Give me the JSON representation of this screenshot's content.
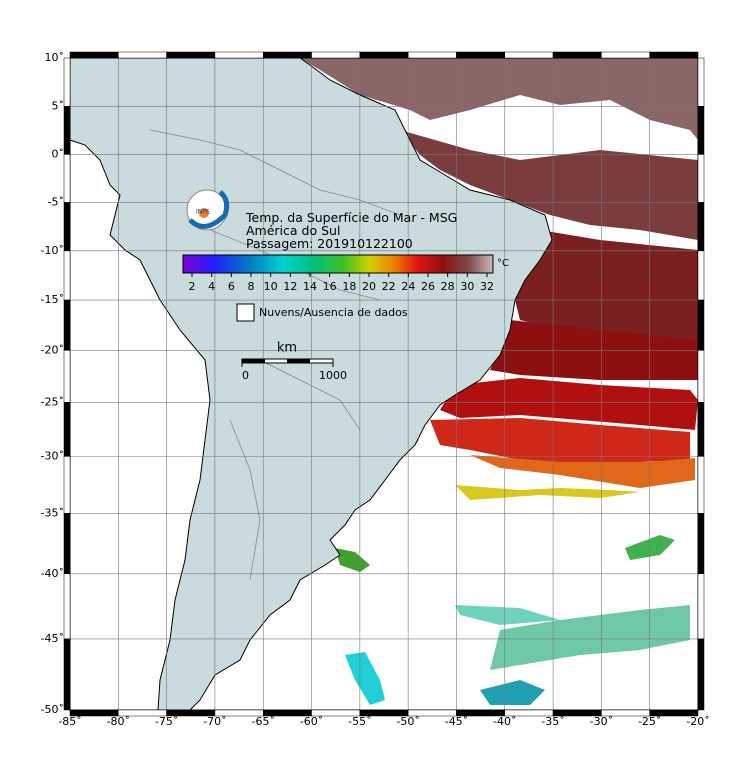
{
  "header": {
    "logo": "INPE",
    "title": "Temp. da Superfície do Mar - MSG",
    "region": "América do Sul",
    "pass": "Passagem: 201910122100"
  },
  "colorbar": {
    "ticks": [
      2,
      4,
      6,
      8,
      10,
      12,
      14,
      16,
      18,
      20,
      22,
      24,
      26,
      28,
      30,
      32
    ],
    "unit": "°C"
  },
  "legend": {
    "label": "Nuvens/Ausencia de dados"
  },
  "scale": {
    "unit": "km",
    "ticks": [
      0,
      1000
    ]
  },
  "axes": {
    "lat_ticks": [
      {
        "value": 10,
        "label": "10˚"
      },
      {
        "value": 5,
        "label": "5˚"
      },
      {
        "value": 0,
        "label": "0˚"
      },
      {
        "value": -5,
        "label": "-5˚"
      },
      {
        "value": -10,
        "label": "-10˚"
      },
      {
        "value": -15,
        "label": "-15˚"
      },
      {
        "value": -20,
        "label": "-20˚"
      },
      {
        "value": -25,
        "label": "-25˚"
      },
      {
        "value": -30,
        "label": "-30˚"
      },
      {
        "value": -35,
        "label": "-35˚"
      },
      {
        "value": -40,
        "label": "-40˚"
      },
      {
        "value": -45,
        "label": "-45˚"
      },
      {
        "value": -50,
        "label": "-50˚"
      }
    ],
    "lon_ticks": [
      {
        "value": -85,
        "label": "-85˚"
      },
      {
        "value": -80,
        "label": "-80˚"
      },
      {
        "value": -75,
        "label": "-75˚"
      },
      {
        "value": -70,
        "label": "-70˚"
      },
      {
        "value": -65,
        "label": "-65˚"
      },
      {
        "value": -60,
        "label": "-60˚"
      },
      {
        "value": -55,
        "label": "-55˚"
      },
      {
        "value": -50,
        "label": "-50˚"
      },
      {
        "value": -45,
        "label": "-45˚"
      },
      {
        "value": -40,
        "label": "-40˚"
      },
      {
        "value": -35,
        "label": "-35˚"
      },
      {
        "value": -30,
        "label": "-30˚"
      },
      {
        "value": -25,
        "label": "-25˚"
      },
      {
        "value": -20,
        "label": "-20˚"
      }
    ]
  }
}
